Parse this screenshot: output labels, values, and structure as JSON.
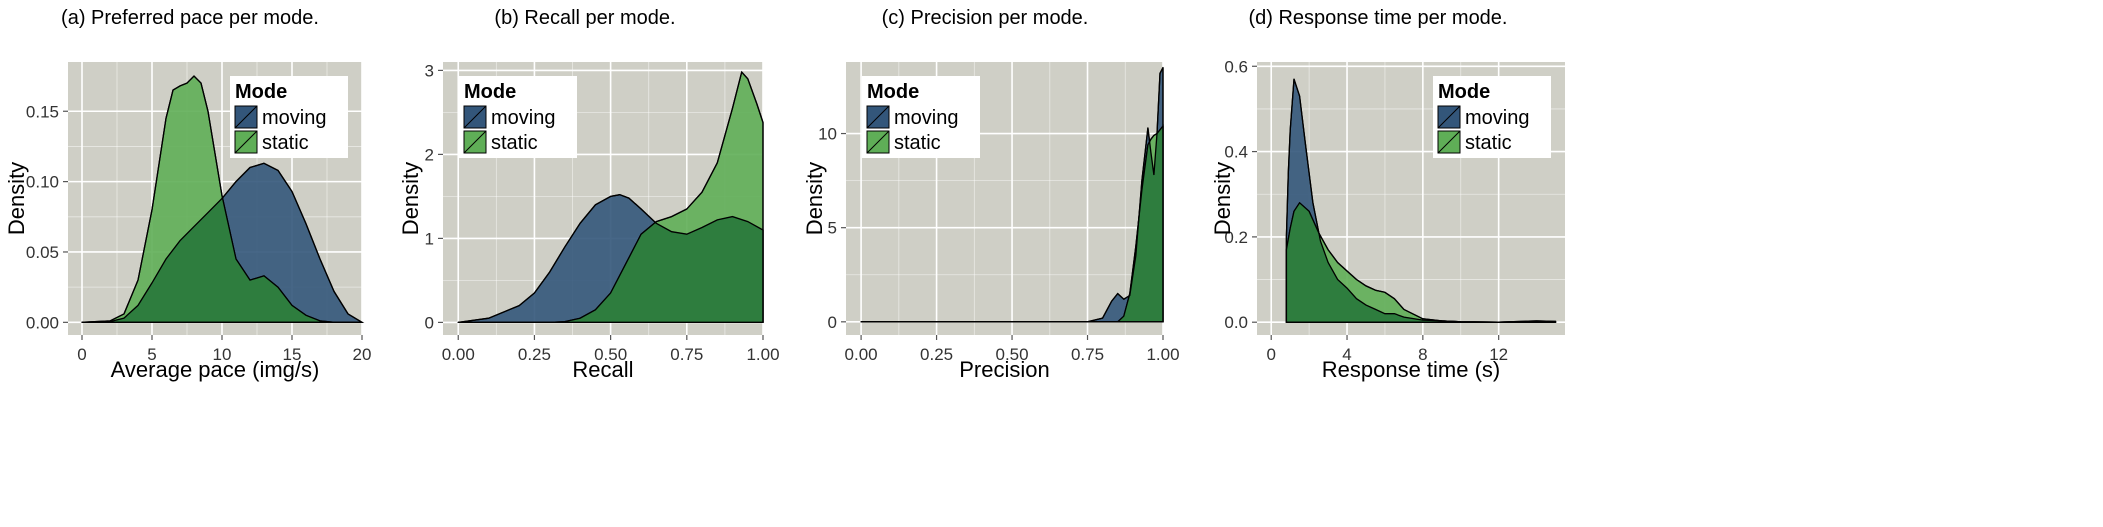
{
  "colors": {
    "panel_bg": "#cfcfc6",
    "grid": "#ffffff",
    "moving": "#33567a",
    "static": "#5fae57",
    "overlap": "#2e7d3e",
    "outline": "#000000",
    "legend_bg": "#ffffff"
  },
  "legend": {
    "title": "Mode",
    "items": [
      "moving",
      "static"
    ]
  },
  "chart_data": [
    {
      "type": "area",
      "title": "(a) Preferred pace per mode.",
      "xlabel": "Average pace (img/s)",
      "ylabel": "Density",
      "xlim": [
        -1,
        20
      ],
      "ylim": [
        -0.009,
        0.185
      ],
      "xticks": [
        0,
        5,
        10,
        15,
        20
      ],
      "xtick_labels": [
        "0",
        "5",
        "10",
        "15",
        "20"
      ],
      "yticks": [
        0,
        0.05,
        0.1,
        0.15
      ],
      "ytick_labels": [
        "0.00",
        "0.05",
        "0.10",
        "0.15"
      ],
      "legend_position": "top-right",
      "series": [
        {
          "name": "moving",
          "x": [
            0,
            2,
            3,
            4,
            5,
            6,
            7,
            8,
            9,
            10,
            11,
            12,
            13,
            14,
            15,
            16,
            17,
            18,
            19,
            20
          ],
          "values": [
            0,
            0.0005,
            0.003,
            0.012,
            0.028,
            0.045,
            0.058,
            0.068,
            0.078,
            0.088,
            0.1,
            0.11,
            0.113,
            0.108,
            0.093,
            0.07,
            0.045,
            0.022,
            0.006,
            0
          ]
        },
        {
          "name": "static",
          "x": [
            0,
            2,
            3,
            4,
            5,
            6,
            6.5,
            7,
            7.5,
            8,
            8.5,
            9,
            9.5,
            10,
            11,
            12,
            13,
            14,
            15,
            16,
            17,
            18,
            19,
            20
          ],
          "values": [
            0,
            0.001,
            0.006,
            0.03,
            0.08,
            0.145,
            0.165,
            0.168,
            0.17,
            0.175,
            0.17,
            0.15,
            0.12,
            0.09,
            0.045,
            0.03,
            0.033,
            0.025,
            0.012,
            0.005,
            0.001,
            0,
            0,
            0
          ]
        }
      ]
    },
    {
      "type": "area",
      "title": "(b) Recall per mode.",
      "xlabel": "Recall",
      "ylabel": "Density",
      "xlim": [
        -0.05,
        1
      ],
      "ylim": [
        -0.15,
        3.1
      ],
      "xticks": [
        0,
        0.25,
        0.5,
        0.75,
        1.0
      ],
      "xtick_labels": [
        "0.00",
        "0.25",
        "0.50",
        "0.75",
        "1.00"
      ],
      "yticks": [
        0,
        1,
        2,
        3
      ],
      "ytick_labels": [
        "0",
        "1",
        "2",
        "3"
      ],
      "legend_position": "top-left",
      "series": [
        {
          "name": "moving",
          "x": [
            0,
            0.1,
            0.2,
            0.25,
            0.3,
            0.35,
            0.4,
            0.45,
            0.5,
            0.53,
            0.56,
            0.6,
            0.65,
            0.7,
            0.75,
            0.8,
            0.85,
            0.9,
            0.95,
            1.0
          ],
          "values": [
            0,
            0.05,
            0.2,
            0.35,
            0.6,
            0.9,
            1.18,
            1.4,
            1.5,
            1.52,
            1.48,
            1.35,
            1.18,
            1.08,
            1.05,
            1.13,
            1.22,
            1.26,
            1.2,
            1.1
          ]
        },
        {
          "name": "static",
          "x": [
            0,
            0.2,
            0.3,
            0.35,
            0.4,
            0.45,
            0.5,
            0.55,
            0.6,
            0.65,
            0.7,
            0.75,
            0.8,
            0.85,
            0.9,
            0.93,
            0.95,
            0.98,
            1.0
          ],
          "values": [
            0,
            0,
            0.0,
            0.01,
            0.05,
            0.15,
            0.35,
            0.7,
            1.05,
            1.2,
            1.26,
            1.35,
            1.55,
            1.9,
            2.55,
            2.98,
            2.9,
            2.6,
            2.38
          ]
        }
      ]
    },
    {
      "type": "area",
      "title": "(c) Precision per mode.",
      "xlabel": "Precision",
      "ylabel": "Density",
      "xlim": [
        -0.05,
        1
      ],
      "ylim": [
        -0.7,
        13.8
      ],
      "xticks": [
        0,
        0.25,
        0.5,
        0.75,
        1.0
      ],
      "xtick_labels": [
        "0.00",
        "0.25",
        "0.50",
        "0.75",
        "1.00"
      ],
      "yticks": [
        0,
        5,
        10
      ],
      "ytick_labels": [
        "0",
        "5",
        "10"
      ],
      "legend_position": "top-left",
      "series": [
        {
          "name": "moving",
          "x": [
            0,
            0.75,
            0.8,
            0.83,
            0.85,
            0.87,
            0.89,
            0.91,
            0.93,
            0.95,
            0.96,
            0.97,
            0.98,
            0.99,
            1.0
          ],
          "values": [
            0,
            0,
            0.2,
            1.1,
            1.5,
            1.2,
            1.4,
            3.5,
            7.5,
            10.3,
            9.0,
            7.8,
            10.0,
            13.2,
            13.5
          ]
        },
        {
          "name": "static",
          "x": [
            0,
            0.85,
            0.87,
            0.89,
            0.91,
            0.93,
            0.95,
            0.96,
            0.97,
            0.98,
            0.99,
            1.0
          ],
          "values": [
            0,
            0,
            0.3,
            1.5,
            4.0,
            7.0,
            9.4,
            9.7,
            9.9,
            10.0,
            10.2,
            10.4
          ]
        }
      ]
    },
    {
      "type": "area",
      "title": "(d) Response time per mode.",
      "xlabel": "Response time (s)",
      "ylabel": "Density",
      "xlim": [
        -0.75,
        15.5
      ],
      "ylim": [
        -0.03,
        0.61
      ],
      "xticks": [
        0,
        4,
        8,
        12
      ],
      "xtick_labels": [
        "0",
        "4",
        "8",
        "12"
      ],
      "yticks": [
        0,
        0.2,
        0.4,
        0.6
      ],
      "ytick_labels": [
        "0.0",
        "0.2",
        "0.4",
        "0.6"
      ],
      "legend_position": "top-right",
      "series": [
        {
          "name": "moving",
          "x": [
            0.8,
            0.9,
            1.0,
            1.2,
            1.5,
            1.8,
            2.2,
            2.6,
            3,
            3.5,
            4,
            4.5,
            5,
            5.5,
            6,
            6.5,
            7,
            8,
            9,
            10,
            12,
            14,
            15
          ],
          "values": [
            0.2,
            0.35,
            0.45,
            0.57,
            0.53,
            0.42,
            0.28,
            0.19,
            0.14,
            0.1,
            0.08,
            0.055,
            0.04,
            0.03,
            0.02,
            0.02,
            0.012,
            0.005,
            0.003,
            0.001,
            0,
            0.003,
            0.002
          ]
        },
        {
          "name": "static",
          "x": [
            0.8,
            1.0,
            1.2,
            1.5,
            2,
            2.5,
            3,
            3.5,
            4,
            4.5,
            5,
            5.5,
            6,
            6.5,
            7,
            8,
            9,
            10,
            12,
            14,
            15
          ],
          "values": [
            0.17,
            0.22,
            0.26,
            0.28,
            0.26,
            0.21,
            0.17,
            0.14,
            0.12,
            0.1,
            0.085,
            0.075,
            0.07,
            0.055,
            0.03,
            0.008,
            0.003,
            0.001,
            0,
            0.002,
            0.001
          ]
        }
      ]
    }
  ]
}
